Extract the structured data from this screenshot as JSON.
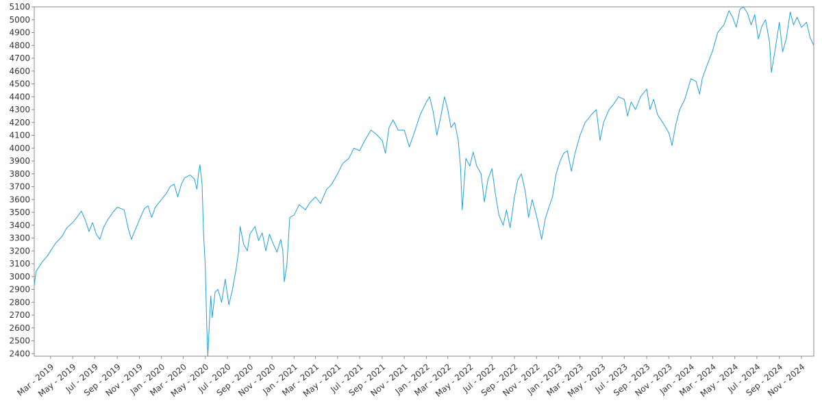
{
  "chart_data": {
    "type": "line",
    "title": "",
    "xlabel": "",
    "ylabel": "",
    "x_range": [
      "2019-01-15",
      "2024-12-05"
    ],
    "ylim": [
      2380,
      5100
    ],
    "grid": false,
    "legend": "none",
    "yticks": [
      2400,
      2500,
      2600,
      2700,
      2800,
      2900,
      3000,
      3100,
      3200,
      3300,
      3400,
      3500,
      3600,
      3700,
      3800,
      3900,
      4000,
      4100,
      4200,
      4300,
      4400,
      4500,
      4600,
      4700,
      4800,
      4900,
      5000,
      5100
    ],
    "xticks": [
      {
        "date": "2019-03-01",
        "label": "Mar - 2019"
      },
      {
        "date": "2019-05-01",
        "label": "May - 2019"
      },
      {
        "date": "2019-07-01",
        "label": "Jul - 2019"
      },
      {
        "date": "2019-09-01",
        "label": "Sep - 2019"
      },
      {
        "date": "2019-11-01",
        "label": "Nov - 2019"
      },
      {
        "date": "2020-01-01",
        "label": "Jan - 2020"
      },
      {
        "date": "2020-03-01",
        "label": "Mar - 2020"
      },
      {
        "date": "2020-05-01",
        "label": "May - 2020"
      },
      {
        "date": "2020-07-01",
        "label": "Jul - 2020"
      },
      {
        "date": "2020-09-01",
        "label": "Sep - 2020"
      },
      {
        "date": "2020-11-01",
        "label": "Nov - 2020"
      },
      {
        "date": "2021-01-01",
        "label": "Jan - 2021"
      },
      {
        "date": "2021-03-01",
        "label": "Mar - 2021"
      },
      {
        "date": "2021-05-01",
        "label": "May - 2021"
      },
      {
        "date": "2021-07-01",
        "label": "Jul - 2021"
      },
      {
        "date": "2021-09-01",
        "label": "Sep - 2021"
      },
      {
        "date": "2021-11-01",
        "label": "Nov - 2021"
      },
      {
        "date": "2022-01-01",
        "label": "Jan - 2022"
      },
      {
        "date": "2022-03-01",
        "label": "Mar - 2022"
      },
      {
        "date": "2022-05-01",
        "label": "May - 2022"
      },
      {
        "date": "2022-07-01",
        "label": "Jul - 2022"
      },
      {
        "date": "2022-09-01",
        "label": "Sep - 2022"
      },
      {
        "date": "2022-11-01",
        "label": "Nov - 2022"
      },
      {
        "date": "2023-01-01",
        "label": "Jan - 2023"
      },
      {
        "date": "2023-03-01",
        "label": "Mar - 2023"
      },
      {
        "date": "2023-05-01",
        "label": "May - 2023"
      },
      {
        "date": "2023-07-01",
        "label": "Jul - 2023"
      },
      {
        "date": "2023-09-01",
        "label": "Sep - 2023"
      },
      {
        "date": "2023-11-01",
        "label": "Nov - 2023"
      },
      {
        "date": "2024-01-01",
        "label": "Jan - 2024"
      },
      {
        "date": "2024-03-01",
        "label": "Mar - 2024"
      },
      {
        "date": "2024-05-01",
        "label": "May - 2024"
      },
      {
        "date": "2024-07-01",
        "label": "Jul - 2024"
      },
      {
        "date": "2024-09-01",
        "label": "Sep - 2024"
      },
      {
        "date": "2024-11-01",
        "label": "Nov - 2024"
      }
    ],
    "series": [
      {
        "color": "#1f9fd6",
        "points": [
          [
            "2019-01-15",
            2930
          ],
          [
            "2019-01-20",
            3040
          ],
          [
            "2019-02-05",
            3110
          ],
          [
            "2019-02-20",
            3160
          ],
          [
            "2019-03-01",
            3200
          ],
          [
            "2019-03-15",
            3260
          ],
          [
            "2019-04-01",
            3310
          ],
          [
            "2019-04-15",
            3380
          ],
          [
            "2019-05-01",
            3420
          ],
          [
            "2019-05-15",
            3470
          ],
          [
            "2019-05-25",
            3510
          ],
          [
            "2019-06-05",
            3440
          ],
          [
            "2019-06-15",
            3350
          ],
          [
            "2019-06-25",
            3420
          ],
          [
            "2019-07-05",
            3330
          ],
          [
            "2019-07-15",
            3290
          ],
          [
            "2019-07-25",
            3380
          ],
          [
            "2019-08-05",
            3440
          ],
          [
            "2019-08-20",
            3500
          ],
          [
            "2019-09-01",
            3540
          ],
          [
            "2019-09-20",
            3520
          ],
          [
            "2019-10-01",
            3380
          ],
          [
            "2019-10-10",
            3290
          ],
          [
            "2019-10-20",
            3360
          ],
          [
            "2019-11-01",
            3440
          ],
          [
            "2019-11-15",
            3530
          ],
          [
            "2019-11-25",
            3550
          ],
          [
            "2019-12-05",
            3460
          ],
          [
            "2019-12-15",
            3540
          ],
          [
            "2020-01-01",
            3600
          ],
          [
            "2020-01-15",
            3650
          ],
          [
            "2020-01-25",
            3700
          ],
          [
            "2020-02-05",
            3720
          ],
          [
            "2020-02-15",
            3620
          ],
          [
            "2020-02-25",
            3720
          ],
          [
            "2020-03-05",
            3770
          ],
          [
            "2020-03-20",
            3790
          ],
          [
            "2020-04-01",
            3760
          ],
          [
            "2020-04-08",
            3680
          ],
          [
            "2020-04-12",
            3800
          ],
          [
            "2020-04-16",
            3870
          ],
          [
            "2020-04-22",
            3720
          ],
          [
            "2020-04-26",
            3340
          ],
          [
            "2020-05-01",
            3080
          ],
          [
            "2020-05-05",
            2620
          ],
          [
            "2020-05-08",
            2380
          ],
          [
            "2020-05-12",
            2620
          ],
          [
            "2020-05-16",
            2850
          ],
          [
            "2020-05-20",
            2680
          ],
          [
            "2020-05-28",
            2880
          ],
          [
            "2020-06-05",
            2900
          ],
          [
            "2020-06-15",
            2800
          ],
          [
            "2020-06-25",
            2980
          ],
          [
            "2020-07-05",
            2780
          ],
          [
            "2020-07-15",
            2900
          ],
          [
            "2020-07-25",
            3060
          ],
          [
            "2020-08-01",
            3200
          ],
          [
            "2020-08-05",
            3390
          ],
          [
            "2020-08-15",
            3250
          ],
          [
            "2020-08-25",
            3200
          ],
          [
            "2020-09-01",
            3330
          ],
          [
            "2020-09-15",
            3390
          ],
          [
            "2020-09-25",
            3280
          ],
          [
            "2020-10-05",
            3340
          ],
          [
            "2020-10-15",
            3200
          ],
          [
            "2020-10-25",
            3330
          ],
          [
            "2020-11-05",
            3250
          ],
          [
            "2020-11-15",
            3190
          ],
          [
            "2020-11-25",
            3290
          ],
          [
            "2020-12-01",
            3200
          ],
          [
            "2020-12-05",
            2960
          ],
          [
            "2020-12-12",
            3090
          ],
          [
            "2020-12-20",
            3460
          ],
          [
            "2021-01-01",
            3480
          ],
          [
            "2021-01-15",
            3560
          ],
          [
            "2021-02-01",
            3520
          ],
          [
            "2021-02-15",
            3580
          ],
          [
            "2021-03-01",
            3620
          ],
          [
            "2021-03-15",
            3570
          ],
          [
            "2021-04-01",
            3680
          ],
          [
            "2021-04-15",
            3720
          ],
          [
            "2021-05-01",
            3800
          ],
          [
            "2021-05-15",
            3880
          ],
          [
            "2021-06-01",
            3920
          ],
          [
            "2021-06-15",
            4000
          ],
          [
            "2021-07-01",
            3980
          ],
          [
            "2021-07-15",
            4060
          ],
          [
            "2021-08-01",
            4140
          ],
          [
            "2021-08-15",
            4110
          ],
          [
            "2021-09-01",
            4060
          ],
          [
            "2021-09-10",
            3960
          ],
          [
            "2021-09-20",
            4160
          ],
          [
            "2021-10-01",
            4220
          ],
          [
            "2021-10-15",
            4140
          ],
          [
            "2021-11-01",
            4140
          ],
          [
            "2021-11-15",
            4010
          ],
          [
            "2021-12-01",
            4140
          ],
          [
            "2021-12-15",
            4260
          ],
          [
            "2022-01-01",
            4360
          ],
          [
            "2022-01-10",
            4400
          ],
          [
            "2022-01-20",
            4280
          ],
          [
            "2022-01-30",
            4100
          ],
          [
            "2022-02-10",
            4250
          ],
          [
            "2022-02-20",
            4400
          ],
          [
            "2022-03-01",
            4300
          ],
          [
            "2022-03-10",
            4160
          ],
          [
            "2022-03-20",
            4200
          ],
          [
            "2022-03-30",
            4060
          ],
          [
            "2022-04-05",
            3860
          ],
          [
            "2022-04-10",
            3520
          ],
          [
            "2022-04-20",
            3920
          ],
          [
            "2022-05-01",
            3860
          ],
          [
            "2022-05-10",
            3970
          ],
          [
            "2022-05-20",
            3860
          ],
          [
            "2022-06-01",
            3800
          ],
          [
            "2022-06-10",
            3580
          ],
          [
            "2022-06-20",
            3760
          ],
          [
            "2022-07-01",
            3840
          ],
          [
            "2022-07-10",
            3650
          ],
          [
            "2022-07-20",
            3480
          ],
          [
            "2022-08-01",
            3400
          ],
          [
            "2022-08-10",
            3520
          ],
          [
            "2022-08-20",
            3380
          ],
          [
            "2022-09-01",
            3620
          ],
          [
            "2022-09-10",
            3750
          ],
          [
            "2022-09-20",
            3800
          ],
          [
            "2022-10-01",
            3660
          ],
          [
            "2022-10-10",
            3460
          ],
          [
            "2022-10-20",
            3600
          ],
          [
            "2022-11-01",
            3470
          ],
          [
            "2022-11-10",
            3360
          ],
          [
            "2022-11-15",
            3290
          ],
          [
            "2022-11-25",
            3450
          ],
          [
            "2022-12-05",
            3540
          ],
          [
            "2022-12-15",
            3620
          ],
          [
            "2022-12-25",
            3800
          ],
          [
            "2023-01-05",
            3900
          ],
          [
            "2023-01-15",
            3960
          ],
          [
            "2023-01-25",
            3980
          ],
          [
            "2023-02-05",
            3820
          ],
          [
            "2023-02-15",
            3960
          ],
          [
            "2023-03-01",
            4100
          ],
          [
            "2023-03-15",
            4200
          ],
          [
            "2023-04-01",
            4260
          ],
          [
            "2023-04-15",
            4300
          ],
          [
            "2023-04-25",
            4060
          ],
          [
            "2023-05-05",
            4200
          ],
          [
            "2023-05-20",
            4300
          ],
          [
            "2023-06-01",
            4340
          ],
          [
            "2023-06-15",
            4400
          ],
          [
            "2023-07-01",
            4380
          ],
          [
            "2023-07-10",
            4250
          ],
          [
            "2023-07-20",
            4360
          ],
          [
            "2023-08-01",
            4300
          ],
          [
            "2023-08-15",
            4400
          ],
          [
            "2023-09-01",
            4460
          ],
          [
            "2023-09-10",
            4300
          ],
          [
            "2023-09-20",
            4380
          ],
          [
            "2023-10-01",
            4260
          ],
          [
            "2023-10-15",
            4200
          ],
          [
            "2023-11-01",
            4120
          ],
          [
            "2023-11-10",
            4020
          ],
          [
            "2023-11-20",
            4180
          ],
          [
            "2023-12-01",
            4300
          ],
          [
            "2023-12-15",
            4380
          ],
          [
            "2024-01-01",
            4540
          ],
          [
            "2024-01-15",
            4520
          ],
          [
            "2024-01-25",
            4420
          ],
          [
            "2024-02-01",
            4540
          ],
          [
            "2024-02-15",
            4650
          ],
          [
            "2024-03-01",
            4760
          ],
          [
            "2024-03-15",
            4900
          ],
          [
            "2024-04-01",
            4960
          ],
          [
            "2024-04-15",
            5070
          ],
          [
            "2024-04-25",
            5020
          ],
          [
            "2024-05-05",
            4940
          ],
          [
            "2024-05-15",
            5080
          ],
          [
            "2024-05-25",
            5100
          ],
          [
            "2024-06-05",
            5050
          ],
          [
            "2024-06-15",
            4960
          ],
          [
            "2024-06-25",
            5040
          ],
          [
            "2024-07-05",
            4850
          ],
          [
            "2024-07-15",
            4950
          ],
          [
            "2024-07-25",
            5000
          ],
          [
            "2024-08-05",
            4820
          ],
          [
            "2024-08-10",
            4590
          ],
          [
            "2024-08-20",
            4760
          ],
          [
            "2024-09-01",
            4980
          ],
          [
            "2024-09-10",
            4750
          ],
          [
            "2024-09-20",
            4850
          ],
          [
            "2024-10-01",
            5060
          ],
          [
            "2024-10-10",
            4960
          ],
          [
            "2024-10-20",
            5020
          ],
          [
            "2024-11-01",
            4940
          ],
          [
            "2024-11-15",
            4980
          ],
          [
            "2024-11-25",
            4860
          ],
          [
            "2024-12-05",
            4800
          ]
        ]
      }
    ]
  }
}
